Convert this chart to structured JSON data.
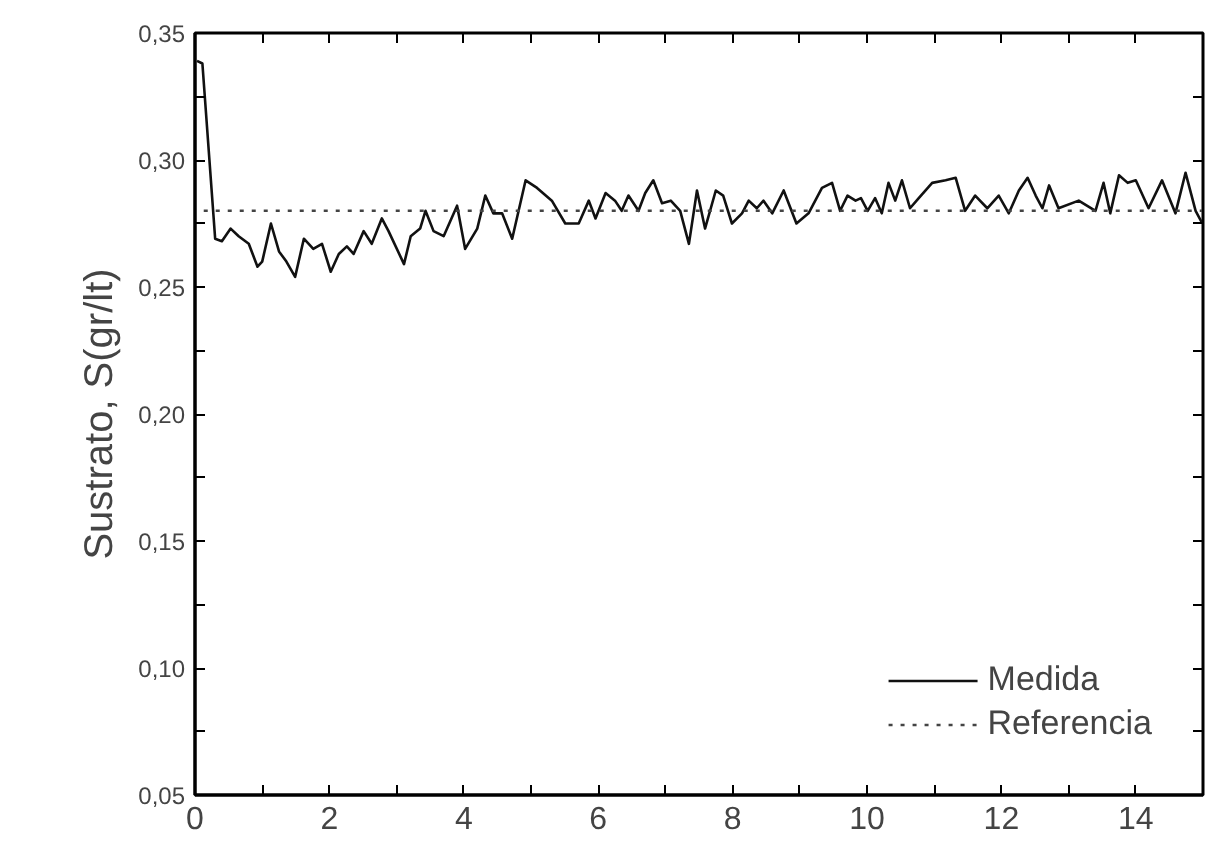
{
  "chart_data": {
    "type": "line",
    "ylabel": "Sustrato, S(gr/lt)",
    "xlim": [
      0,
      15
    ],
    "ylim": [
      0.05,
      0.35
    ],
    "xticks": [
      0,
      {
        "value": 1,
        "label": null
      },
      2,
      {
        "value": 3,
        "label": null
      },
      4,
      {
        "value": 5,
        "label": null
      },
      6,
      {
        "value": 7,
        "label": null
      },
      8,
      {
        "value": 9,
        "label": null
      },
      10,
      {
        "value": 11,
        "label": null
      },
      12,
      {
        "value": 13,
        "label": null
      },
      14
    ],
    "yticks": [
      {
        "value": 0.05,
        "label": "0,05"
      },
      {
        "value": 0.075,
        "label": null
      },
      {
        "value": 0.1,
        "label": "0,10"
      },
      {
        "value": 0.125,
        "label": null
      },
      {
        "value": 0.15,
        "label": "0,15"
      },
      {
        "value": 0.175,
        "label": null
      },
      {
        "value": 0.2,
        "label": "0,20"
      },
      {
        "value": 0.225,
        "label": null
      },
      {
        "value": 0.25,
        "label": "0,25"
      },
      {
        "value": 0.275,
        "label": null
      },
      {
        "value": 0.3,
        "label": "0,30"
      },
      {
        "value": 0.325,
        "label": null
      },
      {
        "value": 0.35,
        "label": "0,35"
      }
    ],
    "grid": false,
    "legend": "bottom right",
    "marker": "none",
    "series": [
      {
        "name": "Medida",
        "color": "#111111",
        "line_style": "solid",
        "x": [
          0.03,
          0.11,
          0.3,
          0.4,
          0.53,
          0.65,
          0.8,
          0.93,
          1.0,
          1.13,
          1.25,
          1.36,
          1.49,
          1.62,
          1.76,
          1.89,
          2.02,
          2.14,
          2.26,
          2.36,
          2.51,
          2.63,
          2.78,
          2.88,
          3.11,
          3.21,
          3.35,
          3.43,
          3.55,
          3.7,
          3.9,
          4.02,
          4.2,
          4.32,
          4.44,
          4.57,
          4.72,
          4.92,
          5.09,
          5.31,
          5.51,
          5.71,
          5.86,
          5.96,
          6.11,
          6.25,
          6.35,
          6.45,
          6.6,
          6.7,
          6.82,
          6.95,
          7.08,
          7.22,
          7.35,
          7.47,
          7.59,
          7.75,
          7.86,
          7.99,
          8.14,
          8.24,
          8.36,
          8.46,
          8.59,
          8.76,
          8.95,
          9.13,
          9.33,
          9.48,
          9.6,
          9.71,
          9.83,
          9.91,
          10.01,
          10.12,
          10.22,
          10.32,
          10.42,
          10.52,
          10.64,
          10.77,
          10.97,
          11.17,
          11.32,
          11.46,
          11.61,
          11.79,
          11.96,
          12.11,
          12.26,
          12.39,
          12.51,
          12.61,
          12.71,
          12.85,
          13.15,
          13.4,
          13.52,
          13.62,
          13.75,
          13.88,
          14.0,
          14.19,
          14.39,
          14.59,
          14.74,
          14.89,
          14.99
        ],
        "values": [
          0.339,
          0.338,
          0.269,
          0.268,
          0.273,
          0.27,
          0.267,
          0.258,
          0.26,
          0.275,
          0.264,
          0.26,
          0.254,
          0.269,
          0.265,
          0.267,
          0.256,
          0.263,
          0.266,
          0.263,
          0.272,
          0.267,
          0.277,
          0.272,
          0.259,
          0.27,
          0.273,
          0.28,
          0.272,
          0.27,
          0.282,
          0.265,
          0.273,
          0.286,
          0.279,
          0.279,
          0.269,
          0.292,
          0.289,
          0.284,
          0.275,
          0.275,
          0.284,
          0.277,
          0.287,
          0.284,
          0.28,
          0.286,
          0.28,
          0.287,
          0.292,
          0.283,
          0.284,
          0.28,
          0.267,
          0.288,
          0.273,
          0.288,
          0.286,
          0.275,
          0.279,
          0.284,
          0.281,
          0.284,
          0.279,
          0.288,
          0.275,
          0.279,
          0.289,
          0.291,
          0.28,
          0.286,
          0.284,
          0.285,
          0.28,
          0.285,
          0.279,
          0.291,
          0.284,
          0.292,
          0.281,
          0.285,
          0.291,
          0.292,
          0.293,
          0.28,
          0.286,
          0.281,
          0.286,
          0.279,
          0.288,
          0.293,
          0.286,
          0.281,
          0.29,
          0.281,
          0.284,
          0.28,
          0.291,
          0.279,
          0.294,
          0.291,
          0.292,
          0.281,
          0.292,
          0.279,
          0.295,
          0.28,
          0.275
        ]
      },
      {
        "name": "Referencia",
        "color": "#444444",
        "line_style": "dotted",
        "x": [
          0.13,
          15
        ],
        "values": [
          0.28,
          0.28
        ]
      }
    ]
  }
}
